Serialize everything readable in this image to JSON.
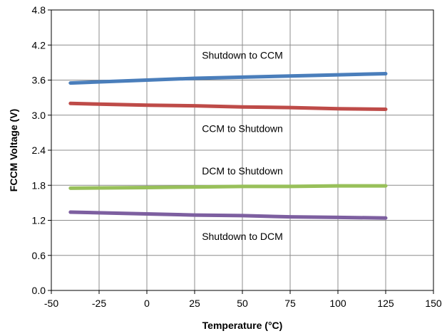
{
  "chart_data": {
    "type": "line",
    "xlabel": "Temperature (°C)",
    "ylabel": "FCCM Voltage (V)",
    "xlim": [
      -50,
      150
    ],
    "ylim": [
      0,
      4.8
    ],
    "x_ticks": [
      "-50",
      "-25",
      "0",
      "25",
      "50",
      "75",
      "100",
      "125",
      "150"
    ],
    "y_ticks": [
      "0.0",
      "0.6",
      "1.2",
      "1.8",
      "2.4",
      "3.0",
      "3.6",
      "4.2",
      "4.8"
    ],
    "grid": true,
    "series": [
      {
        "name": "Shutdown to CCM",
        "color": "#4a7ebb",
        "x": [
          -40,
          0,
          25,
          50,
          75,
          100,
          125
        ],
        "y": [
          3.55,
          3.6,
          3.63,
          3.65,
          3.67,
          3.69,
          3.71
        ]
      },
      {
        "name": "CCM to Shutdown",
        "color": "#be4b48",
        "x": [
          -40,
          0,
          25,
          50,
          75,
          100,
          125
        ],
        "y": [
          3.2,
          3.17,
          3.16,
          3.14,
          3.13,
          3.11,
          3.1
        ]
      },
      {
        "name": "DCM to Shutdown",
        "color": "#98c05a",
        "x": [
          -40,
          0,
          25,
          50,
          75,
          100,
          125
        ],
        "y": [
          1.75,
          1.76,
          1.77,
          1.78,
          1.78,
          1.79,
          1.79
        ]
      },
      {
        "name": "Shutdown to DCM",
        "color": "#7d5fa0",
        "x": [
          -40,
          0,
          25,
          50,
          75,
          100,
          125
        ],
        "y": [
          1.34,
          1.31,
          1.29,
          1.28,
          1.26,
          1.25,
          1.24
        ]
      }
    ]
  }
}
